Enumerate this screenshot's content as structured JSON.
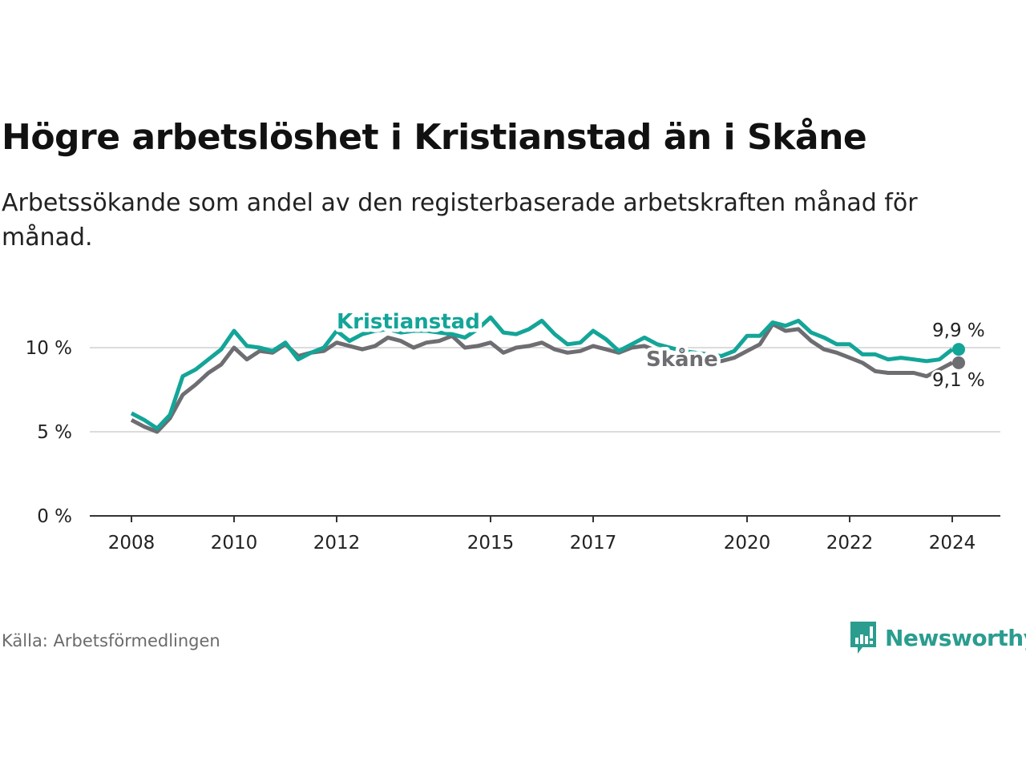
{
  "header": {
    "title": "Högre arbetslöshet i Kristianstad än i Skåne",
    "subtitle": "Arbetssökande som andel av den registerbaserade arbetskraften månad för månad."
  },
  "footer": {
    "source": "Källa: Arbetsförmedlingen",
    "brand": "Newsworthy"
  },
  "chart_data": {
    "type": "line",
    "title": "Högre arbetslöshet i Kristianstad än i Skåne",
    "xlabel": "",
    "ylabel": "",
    "xlim": [
      2008,
      2024
    ],
    "ylim": [
      0,
      12
    ],
    "grid": true,
    "x_step": 0.25,
    "x_start": 2008,
    "yticks": [
      {
        "value": 0,
        "label": "0 %"
      },
      {
        "value": 5,
        "label": "5 %"
      },
      {
        "value": 10,
        "label": "10 %"
      }
    ],
    "xticks": [
      {
        "value": 2008,
        "label": "2008"
      },
      {
        "value": 2010,
        "label": "2010"
      },
      {
        "value": 2012,
        "label": "2012"
      },
      {
        "value": 2015,
        "label": "2015"
      },
      {
        "value": 2017,
        "label": "2017"
      },
      {
        "value": 2020,
        "label": "2020"
      },
      {
        "value": 2022,
        "label": "2022"
      },
      {
        "value": 2024,
        "label": "2024"
      }
    ],
    "series": [
      {
        "name": "Kristianstad",
        "color": "#13a598",
        "end_label": "9,9 %",
        "values": [
          6.1,
          5.7,
          5.2,
          6.0,
          8.3,
          8.7,
          9.3,
          9.9,
          11.0,
          10.1,
          10.0,
          9.8,
          10.3,
          9.3,
          9.7,
          10.0,
          11.0,
          10.4,
          10.8,
          11.0,
          11.1,
          10.9,
          11.0,
          11.0,
          10.9,
          10.8,
          10.6,
          11.1,
          11.8,
          10.9,
          10.8,
          11.1,
          11.6,
          10.8,
          10.2,
          10.3,
          11.0,
          10.5,
          9.8,
          10.2,
          10.6,
          10.2,
          10.0,
          9.8,
          9.7,
          9.6,
          9.5,
          9.8,
          10.7,
          10.7,
          11.5,
          11.3,
          11.6,
          10.9,
          10.6,
          10.2,
          10.2,
          9.6,
          9.6,
          9.3,
          9.4,
          9.3,
          9.2,
          9.3,
          9.9
        ]
      },
      {
        "name": "Skåne",
        "color": "#6e6d72",
        "end_label": "9,1 %",
        "values": [
          5.7,
          5.3,
          5.0,
          5.8,
          7.2,
          7.8,
          8.5,
          9.0,
          10.0,
          9.3,
          9.8,
          9.7,
          10.2,
          9.5,
          9.7,
          9.8,
          10.3,
          10.1,
          9.9,
          10.1,
          10.6,
          10.4,
          10.0,
          10.3,
          10.4,
          10.7,
          10.0,
          10.1,
          10.3,
          9.7,
          10.0,
          10.1,
          10.3,
          9.9,
          9.7,
          9.8,
          10.1,
          9.9,
          9.7,
          10.0,
          10.1,
          9.8,
          9.6,
          9.4,
          9.3,
          9.2,
          9.2,
          9.4,
          9.8,
          10.2,
          11.4,
          11.0,
          11.1,
          10.4,
          9.9,
          9.7,
          9.4,
          9.1,
          8.6,
          8.5,
          8.5,
          8.5,
          8.3,
          8.7,
          9.1
        ]
      }
    ]
  }
}
